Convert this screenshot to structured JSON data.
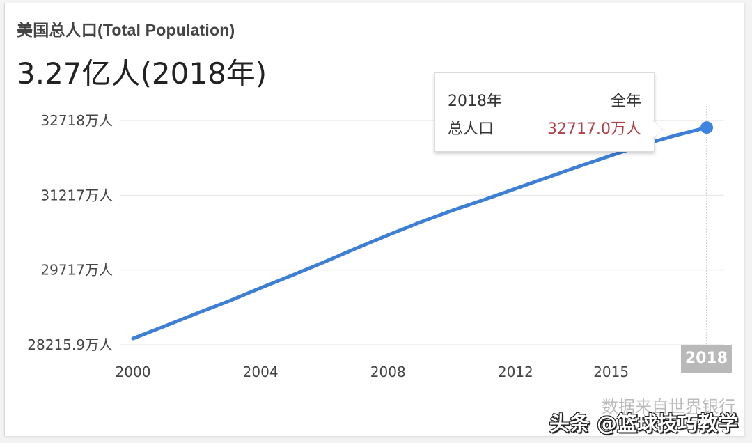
{
  "title": "美国总人口(Total Population)",
  "headline": "3.27亿人(2018年)",
  "tooltip": {
    "year_label": "2018年",
    "period_label": "全年",
    "metric_label": "总人口",
    "metric_value": "32717.0万人"
  },
  "highlight_x_label": "2018",
  "source_note": "数据来自世界银行",
  "watermark": "头条 @篮球技巧教学",
  "colors": {
    "line": "#3d7fd4",
    "point": "#3d85e0",
    "tooltip_value": "#b04048",
    "grid": "#ebebeb",
    "highlight_bg": "#b9b9b9"
  },
  "chart_data": {
    "type": "line",
    "title": "美国总人口(Total Population)",
    "xlabel": "",
    "ylabel": "",
    "unit": "万人",
    "x": [
      2000,
      2001,
      2002,
      2003,
      2004,
      2005,
      2006,
      2007,
      2008,
      2009,
      2010,
      2011,
      2012,
      2013,
      2014,
      2015,
      2016,
      2017,
      2018
    ],
    "series": [
      {
        "name": "总人口",
        "values": [
          28215.9,
          28480,
          28750,
          29010,
          29290,
          29560,
          29840,
          30130,
          30410,
          30680,
          30930,
          31160,
          31400,
          31640,
          31880,
          32110,
          32340,
          32540,
          32717.0
        ]
      }
    ],
    "x_tick_labels": [
      "2000",
      "2004",
      "2008",
      "2012",
      "2015",
      "2018"
    ],
    "y_tick_labels": [
      "28215.9万人",
      "29717万人",
      "31217万人",
      "32718万人"
    ],
    "y_ticks": [
      28215.9,
      29717,
      31217,
      32718
    ],
    "ylim": [
      28215.9,
      32718
    ],
    "grid": true,
    "legend": "none",
    "highlighted_point": {
      "x": 2018,
      "value": 32717.0
    }
  }
}
